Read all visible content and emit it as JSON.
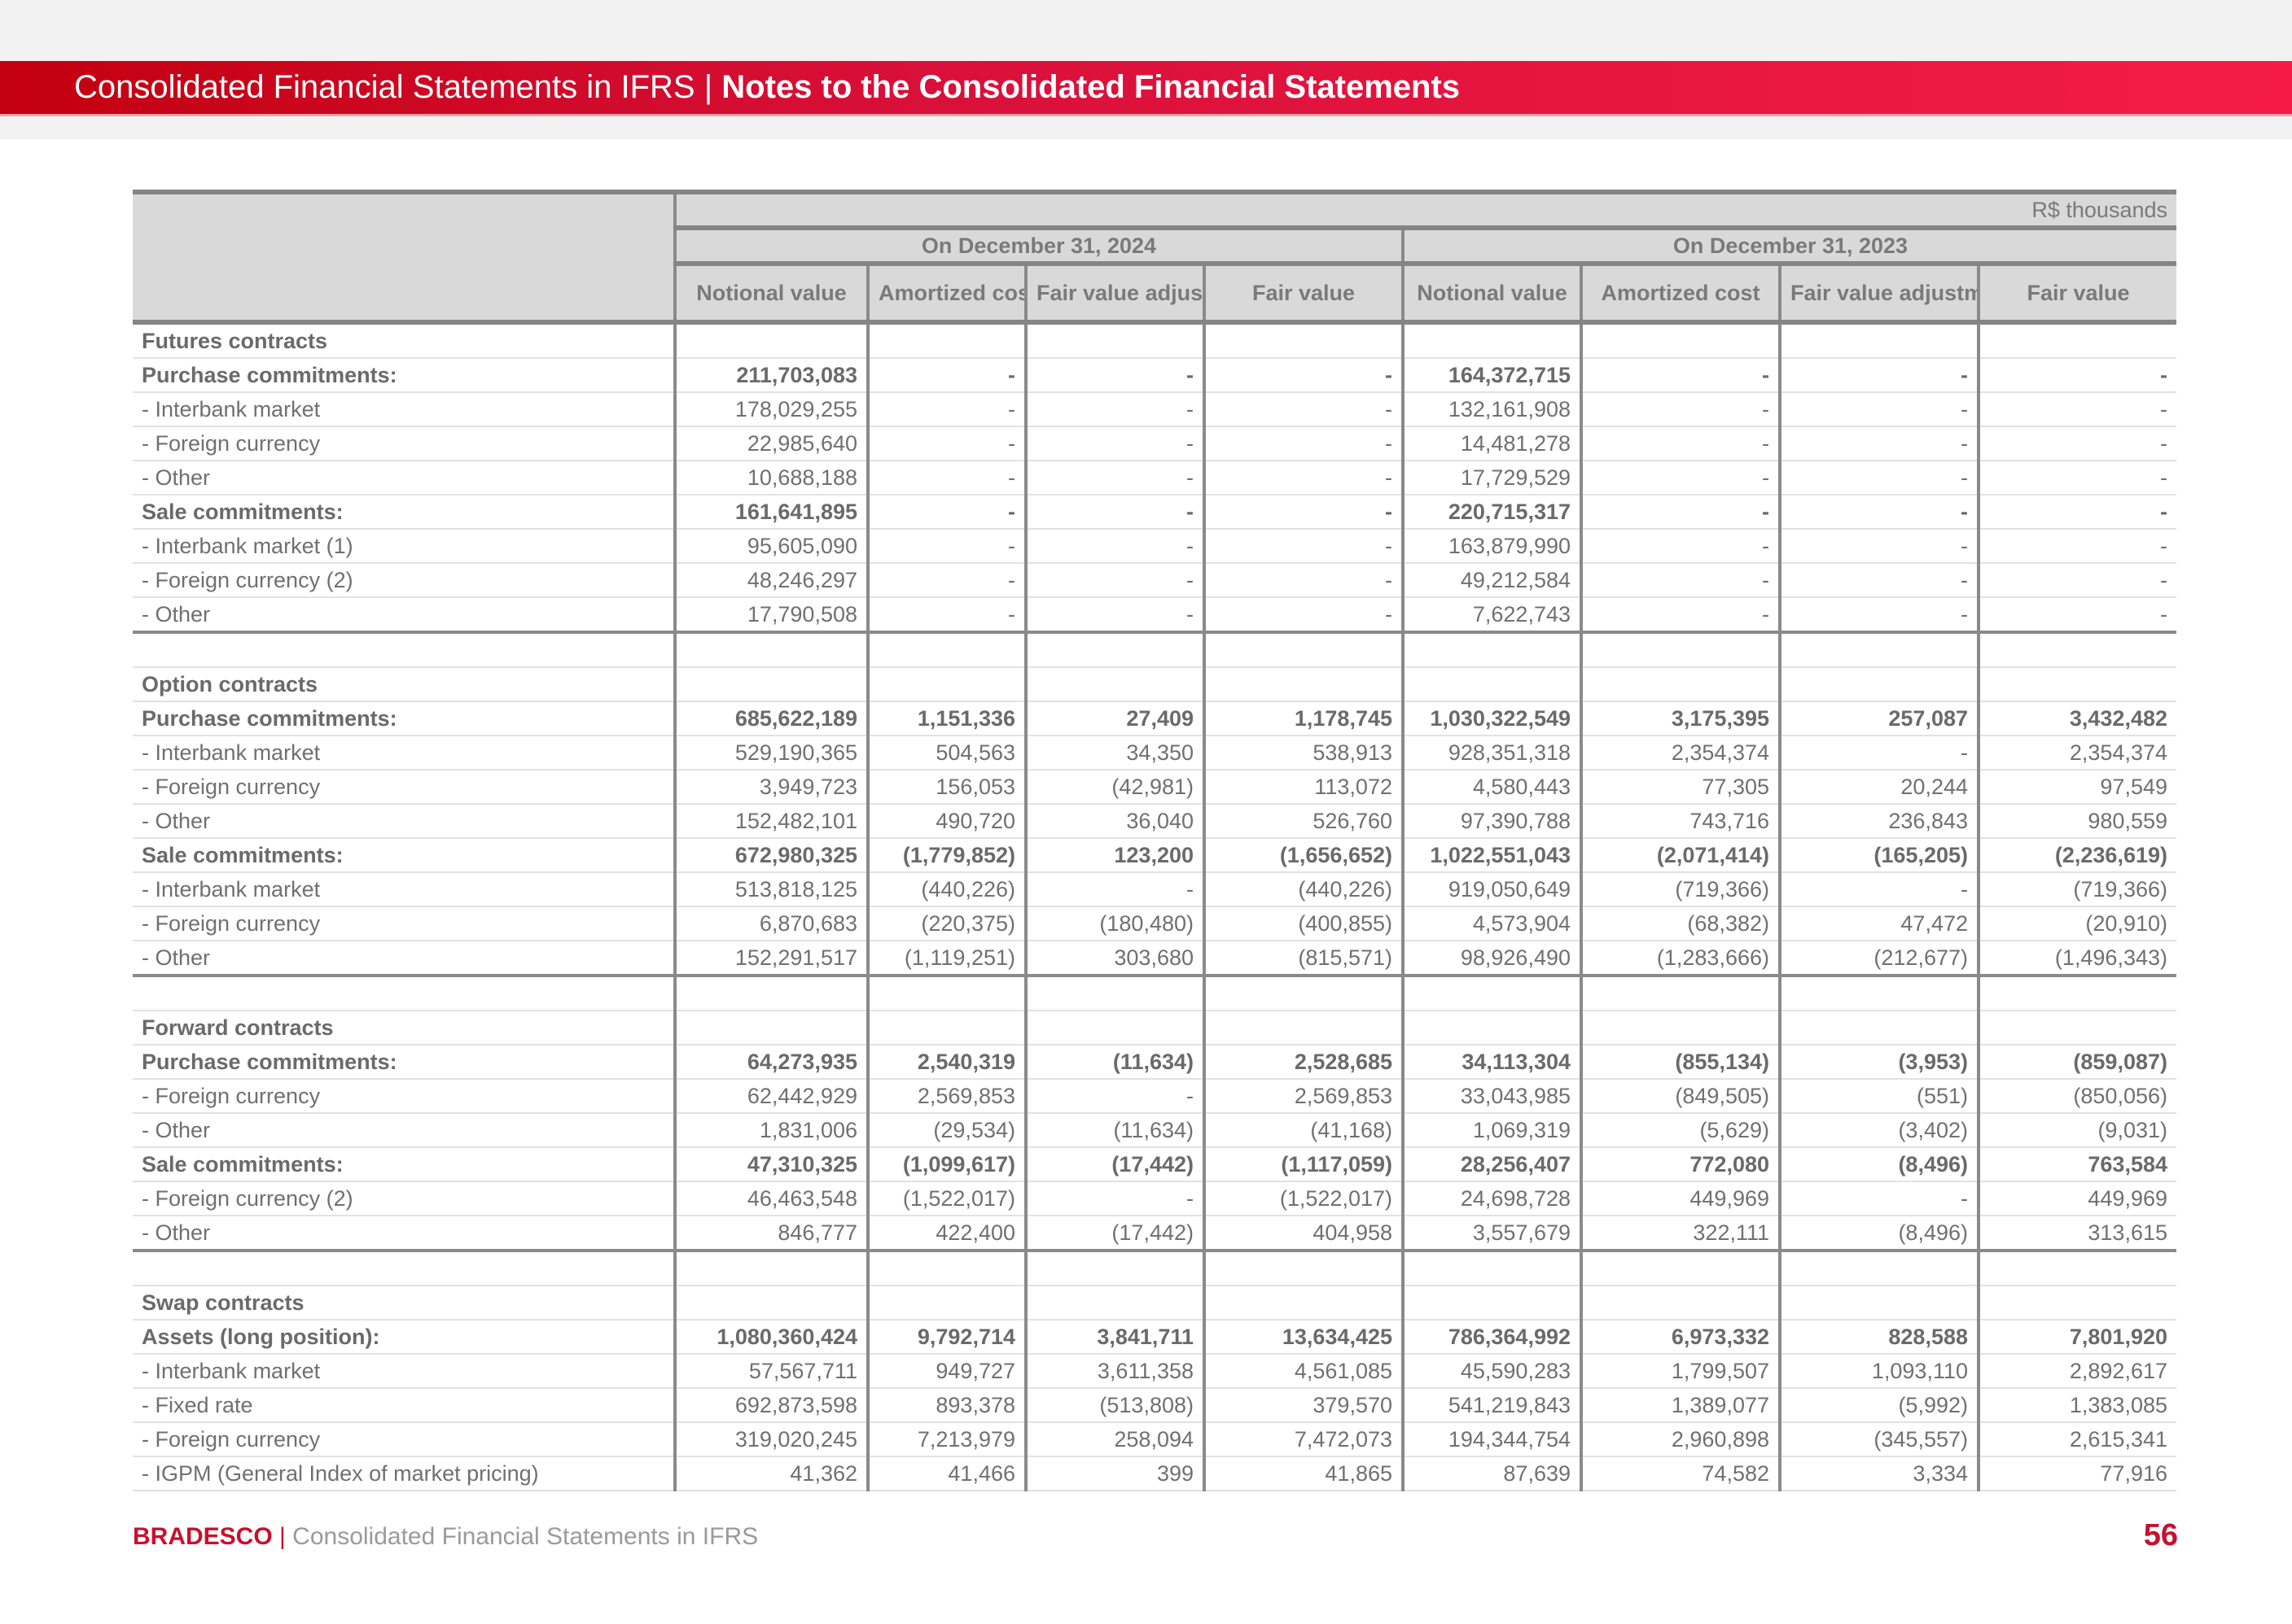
{
  "header": {
    "title_regular": "Consolidated Financial Statements in IFRS",
    "separator": "|",
    "title_bold": "Notes to the Consolidated Financial Statements"
  },
  "table": {
    "unit": "R$ thousands",
    "periods": [
      "On December 31, 2024",
      "On December 31, 2023"
    ],
    "columns": [
      "Notional value",
      "Amortized cost",
      "Fair value adjustment",
      "Fair value",
      "Notional value",
      "Amortized cost",
      "Fair value adjustment",
      "Fair value"
    ],
    "sections": [
      {
        "rows": [
          {
            "label": "Futures contracts",
            "bold": true,
            "values": [
              "",
              "",
              "",
              "",
              "",
              "",
              "",
              ""
            ]
          },
          {
            "label": "Purchase commitments:",
            "bold": true,
            "values": [
              "211,703,083",
              "-",
              "-",
              "-",
              "164,372,715",
              "-",
              "-",
              "-"
            ]
          },
          {
            "label": "- Interbank market",
            "values": [
              "178,029,255",
              "-",
              "-",
              "-",
              "132,161,908",
              "-",
              "-",
              "-"
            ]
          },
          {
            "label": "- Foreign currency",
            "values": [
              "22,985,640",
              "-",
              "-",
              "-",
              "14,481,278",
              "-",
              "-",
              "-"
            ]
          },
          {
            "label": "- Other",
            "values": [
              "10,688,188",
              "-",
              "-",
              "-",
              "17,729,529",
              "-",
              "-",
              "-"
            ]
          },
          {
            "label": "Sale commitments:",
            "bold": true,
            "values": [
              "161,641,895",
              "-",
              "-",
              "-",
              "220,715,317",
              "-",
              "-",
              "-"
            ]
          },
          {
            "label": "- Interbank market (1)",
            "values": [
              "95,605,090",
              "-",
              "-",
              "-",
              "163,879,990",
              "-",
              "-",
              "-"
            ]
          },
          {
            "label": "- Foreign currency (2)",
            "values": [
              "48,246,297",
              "-",
              "-",
              "-",
              "49,212,584",
              "-",
              "-",
              "-"
            ]
          },
          {
            "label": "- Other",
            "values": [
              "17,790,508",
              "-",
              "-",
              "-",
              "7,622,743",
              "-",
              "-",
              "-"
            ]
          }
        ]
      },
      {
        "rows": [
          {
            "label": "",
            "values": [
              "",
              "",
              "",
              "",
              "",
              "",
              "",
              ""
            ]
          },
          {
            "label": "Option contracts",
            "bold": true,
            "values": [
              "",
              "",
              "",
              "",
              "",
              "",
              "",
              ""
            ]
          },
          {
            "label": "Purchase commitments:",
            "bold": true,
            "values": [
              "685,622,189",
              "1,151,336",
              "27,409",
              "1,178,745",
              "1,030,322,549",
              "3,175,395",
              "257,087",
              "3,432,482"
            ]
          },
          {
            "label": "- Interbank market",
            "values": [
              "529,190,365",
              "504,563",
              "34,350",
              "538,913",
              "928,351,318",
              "2,354,374",
              "-",
              "2,354,374"
            ]
          },
          {
            "label": "- Foreign currency",
            "values": [
              "3,949,723",
              "156,053",
              "(42,981)",
              "113,072",
              "4,580,443",
              "77,305",
              "20,244",
              "97,549"
            ]
          },
          {
            "label": "- Other",
            "values": [
              "152,482,101",
              "490,720",
              "36,040",
              "526,760",
              "97,390,788",
              "743,716",
              "236,843",
              "980,559"
            ]
          },
          {
            "label": "Sale commitments:",
            "bold": true,
            "values": [
              "672,980,325",
              "(1,779,852)",
              "123,200",
              "(1,656,652)",
              "1,022,551,043",
              "(2,071,414)",
              "(165,205)",
              "(2,236,619)"
            ]
          },
          {
            "label": "- Interbank market",
            "values": [
              "513,818,125",
              "(440,226)",
              "-",
              "(440,226)",
              "919,050,649",
              "(719,366)",
              "-",
              "(719,366)"
            ]
          },
          {
            "label": "- Foreign currency",
            "values": [
              "6,870,683",
              "(220,375)",
              "(180,480)",
              "(400,855)",
              "4,573,904",
              "(68,382)",
              "47,472",
              "(20,910)"
            ]
          },
          {
            "label": "- Other",
            "values": [
              "152,291,517",
              "(1,119,251)",
              "303,680",
              "(815,571)",
              "98,926,490",
              "(1,283,666)",
              "(212,677)",
              "(1,496,343)"
            ]
          }
        ]
      },
      {
        "rows": [
          {
            "label": "",
            "values": [
              "",
              "",
              "",
              "",
              "",
              "",
              "",
              ""
            ]
          },
          {
            "label": "Forward contracts",
            "bold": true,
            "values": [
              "",
              "",
              "",
              "",
              "",
              "",
              "",
              ""
            ]
          },
          {
            "label": "Purchase commitments:",
            "bold": true,
            "values": [
              "64,273,935",
              "2,540,319",
              "(11,634)",
              "2,528,685",
              "34,113,304",
              "(855,134)",
              "(3,953)",
              "(859,087)"
            ]
          },
          {
            "label": "- Foreign currency",
            "values": [
              "62,442,929",
              "2,569,853",
              "-",
              "2,569,853",
              "33,043,985",
              "(849,505)",
              "(551)",
              "(850,056)"
            ]
          },
          {
            "label": "- Other",
            "values": [
              "1,831,006",
              "(29,534)",
              "(11,634)",
              "(41,168)",
              "1,069,319",
              "(5,629)",
              "(3,402)",
              "(9,031)"
            ]
          },
          {
            "label": "Sale commitments:",
            "bold": true,
            "values": [
              "47,310,325",
              "(1,099,617)",
              "(17,442)",
              "(1,117,059)",
              "28,256,407",
              "772,080",
              "(8,496)",
              "763,584"
            ]
          },
          {
            "label": "- Foreign currency (2)",
            "values": [
              "46,463,548",
              "(1,522,017)",
              "-",
              "(1,522,017)",
              "24,698,728",
              "449,969",
              "-",
              "449,969"
            ]
          },
          {
            "label": "- Other",
            "values": [
              "846,777",
              "422,400",
              "(17,442)",
              "404,958",
              "3,557,679",
              "322,111",
              "(8,496)",
              "313,615"
            ]
          }
        ]
      },
      {
        "rows": [
          {
            "label": "",
            "values": [
              "",
              "",
              "",
              "",
              "",
              "",
              "",
              ""
            ]
          },
          {
            "label": "Swap contracts",
            "bold": true,
            "values": [
              "",
              "",
              "",
              "",
              "",
              "",
              "",
              ""
            ]
          },
          {
            "label": "Assets (long position):",
            "bold": true,
            "values": [
              "1,080,360,424",
              "9,792,714",
              "3,841,711",
              "13,634,425",
              "786,364,992",
              "6,973,332",
              "828,588",
              "7,801,920"
            ]
          },
          {
            "label": "- Interbank market",
            "values": [
              "57,567,711",
              "949,727",
              "3,611,358",
              "4,561,085",
              "45,590,283",
              "1,799,507",
              "1,093,110",
              "2,892,617"
            ]
          },
          {
            "label": "- Fixed rate",
            "values": [
              "692,873,598",
              "893,378",
              "(513,808)",
              "379,570",
              "541,219,843",
              "1,389,077",
              "(5,992)",
              "1,383,085"
            ]
          },
          {
            "label": "- Foreign currency",
            "values": [
              "319,020,245",
              "7,213,979",
              "258,094",
              "7,472,073",
              "194,344,754",
              "2,960,898",
              "(345,557)",
              "2,615,341"
            ]
          },
          {
            "label": "- IGPM (General Index of market pricing)",
            "values": [
              "41,362",
              "41,466",
              "399",
              "41,865",
              "87,639",
              "74,582",
              "3,334",
              "77,916"
            ]
          }
        ]
      }
    ]
  },
  "footer": {
    "brand": "BRADESCO",
    "separator": "|",
    "text": "Consolidated Financial Statements in IFRS",
    "page": "56"
  }
}
